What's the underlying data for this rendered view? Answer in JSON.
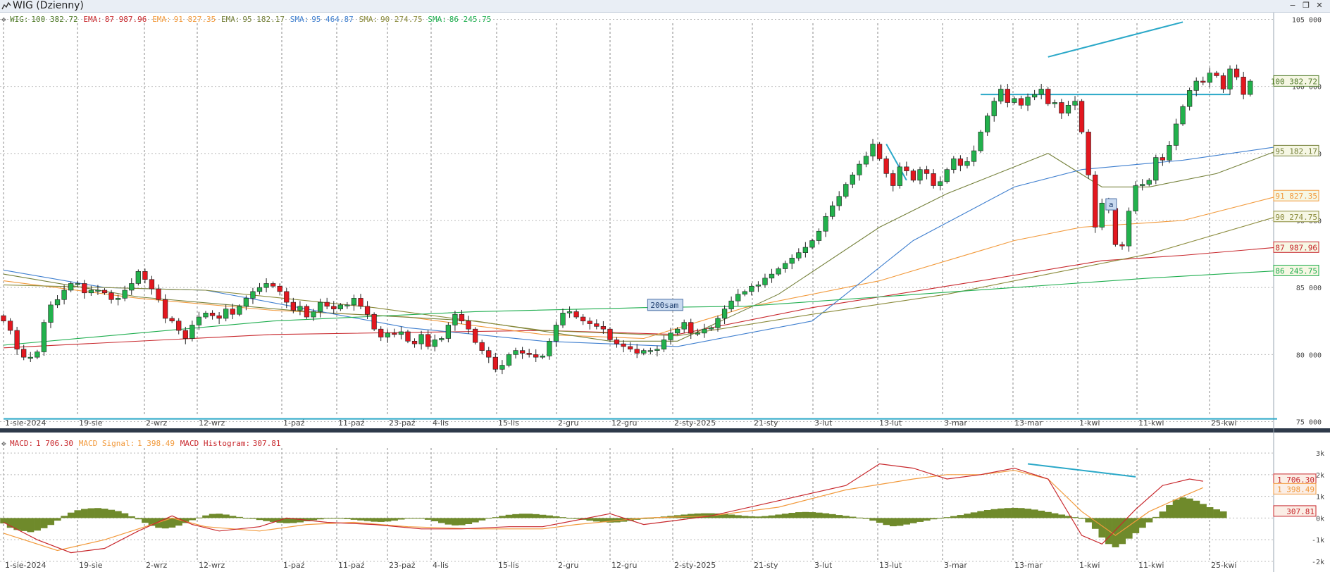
{
  "window": {
    "title": "WIG (Dzienny)",
    "buttons": [
      "−",
      "❐",
      "✕"
    ]
  },
  "chart_data": [
    {
      "type": "candlestick",
      "panel": "price",
      "legend_position": "top-left",
      "grid": true,
      "x_tick_labels": [
        "1-sie-2024",
        "19-sie",
        "2-wrz",
        "12-wrz",
        "1-paź",
        "11-paź",
        "23-paź",
        "4-lis",
        "15-lis",
        "2-gru",
        "12-gru",
        "2-sty-2025",
        "21-sty",
        "3-lut",
        "13-lut",
        "3-mar",
        "13-mar",
        "1-kwi",
        "11-kwi",
        "25-kwi"
      ],
      "y_ticks": [
        75000,
        80000,
        85000,
        90000,
        95000,
        100000,
        105000
      ],
      "y_tick_labels": [
        "75 000",
        "80 000",
        "85 000",
        "90 000",
        "95 000",
        "100 000",
        "105 000"
      ],
      "ylim": [
        74500,
        105500
      ],
      "legend": [
        {
          "label": "WIG:",
          "value": "100 382.72",
          "color": "#4f7a28"
        },
        {
          "label": "EMA:",
          "value": "87 987.96",
          "color": "#c8282d"
        },
        {
          "label": "EMA:",
          "value": "91 827.35",
          "color": "#f29a3c"
        },
        {
          "label": "EMA:",
          "value": "95 182.17",
          "color": "#75813b"
        },
        {
          "label": "SMA:",
          "value": "95 464.87",
          "color": "#3f7fcf"
        },
        {
          "label": "SMA:",
          "value": "90 274.75",
          "color": "#8a8a3a"
        },
        {
          "label": "SMA:",
          "value": "86 245.75",
          "color": "#1fae4f"
        }
      ],
      "last_values": [
        {
          "value": "100 382.72",
          "y": 100382.72,
          "color": "#4f7a28"
        },
        {
          "value": "95 182.17",
          "y": 95182.17,
          "color": "#75813b"
        },
        {
          "value": "91 827.35",
          "y": 91827.35,
          "color": "#f29a3c"
        },
        {
          "value": "90 274.75",
          "y": 90274.75,
          "color": "#8a8a3a"
        },
        {
          "value": "87 987.96",
          "y": 87987.96,
          "color": "#c8282d"
        },
        {
          "value": "86 245.75",
          "y": 86245.75,
          "color": "#1fae4f"
        }
      ],
      "annotations": [
        {
          "text": "200sam",
          "x": 96,
          "y": 83600
        },
        {
          "text": "a",
          "x": 164,
          "y": 91100
        }
      ],
      "trendlines": [
        {
          "x1": 0,
          "y1": 75200,
          "x2": 189,
          "y2": 75200,
          "color": "#2aa8c8"
        },
        {
          "x1": 145,
          "y1": 99400,
          "x2": 182,
          "y2": 99400,
          "color": "#2aa8c8"
        },
        {
          "x1": 155,
          "y1": 102200,
          "x2": 175,
          "y2": 104800,
          "color": "#2aa8c8"
        },
        {
          "x1": 131,
          "y1": 95700,
          "x2": 134,
          "y2": 93000,
          "color": "#2aa8c8"
        }
      ],
      "series": [
        {
          "name": "EMA",
          "color": "#c8282d",
          "points": [
            [
              0,
              80500
            ],
            [
              40,
              81500
            ],
            [
              80,
              81800
            ],
            [
              100,
              81500
            ],
            [
              120,
              83500
            ],
            [
              145,
              85500
            ],
            [
              163,
              87000
            ],
            [
              175,
              87400
            ],
            [
              189,
              88000
            ]
          ]
        },
        {
          "name": "EMA",
          "color": "#f29a3c",
          "points": [
            [
              0,
              85500
            ],
            [
              20,
              84200
            ],
            [
              40,
              83300
            ],
            [
              60,
              82800
            ],
            [
              80,
              81500
            ],
            [
              95,
              81200
            ],
            [
              110,
              83500
            ],
            [
              130,
              85500
            ],
            [
              150,
              88500
            ],
            [
              160,
              89500
            ],
            [
              175,
              90000
            ],
            [
              189,
              91800
            ]
          ]
        },
        {
          "name": "EMA",
          "color": "#75813b",
          "points": [
            [
              0,
              86000
            ],
            [
              20,
              84300
            ],
            [
              45,
              83200
            ],
            [
              70,
              82500
            ],
            [
              90,
              81000
            ],
            [
              100,
              81000
            ],
            [
              115,
              84500
            ],
            [
              130,
              89500
            ],
            [
              140,
              92000
            ],
            [
              155,
              95000
            ],
            [
              163,
              92500
            ],
            [
              170,
              92500
            ],
            [
              180,
              93500
            ],
            [
              189,
              95200
            ]
          ]
        },
        {
          "name": "SMA",
          "color": "#3f7fcf",
          "points": [
            [
              0,
              86300
            ],
            [
              15,
              85000
            ],
            [
              30,
              84800
            ],
            [
              60,
              82000
            ],
            [
              80,
              81000
            ],
            [
              100,
              80600
            ],
            [
              120,
              82500
            ],
            [
              135,
              88500
            ],
            [
              150,
              92500
            ],
            [
              160,
              93800
            ],
            [
              175,
              94500
            ],
            [
              189,
              95500
            ]
          ]
        },
        {
          "name": "SMA",
          "color": "#8a8a3a",
          "points": [
            [
              0,
              85200
            ],
            [
              30,
              84800
            ],
            [
              55,
              83500
            ],
            [
              80,
              81800
            ],
            [
              100,
              81400
            ],
            [
              120,
              83000
            ],
            [
              140,
              84500
            ],
            [
              155,
              86000
            ],
            [
              170,
              87500
            ],
            [
              189,
              90300
            ]
          ]
        },
        {
          "name": "SMA",
          "color": "#1fae4f",
          "points": [
            [
              0,
              80700
            ],
            [
              40,
              82500
            ],
            [
              70,
              83200
            ],
            [
              95,
              83500
            ],
            [
              110,
              83600
            ],
            [
              130,
              84300
            ],
            [
              150,
              85000
            ],
            [
              170,
              85700
            ],
            [
              189,
              86250
            ]
          ]
        }
      ],
      "close": [
        82500,
        81800,
        80400,
        79800,
        79800,
        80200,
        82400,
        83700,
        84100,
        84800,
        85300,
        85300,
        84600,
        84800,
        84800,
        84600,
        84100,
        84200,
        84800,
        85300,
        86200,
        85600,
        84900,
        84100,
        82700,
        82500,
        81800,
        81200,
        82200,
        82800,
        83100,
        82900,
        82700,
        83400,
        83000,
        83600,
        84200,
        84700,
        85000,
        85300,
        85100,
        84700,
        83900,
        83300,
        83600,
        82800,
        83200,
        83900,
        83600,
        83400,
        83700,
        83700,
        84200,
        83600,
        83000,
        81900,
        81300,
        81600,
        81500,
        81700,
        81000,
        80800,
        81500,
        80600,
        81100,
        81200,
        82200,
        83000,
        82500,
        81900,
        80900,
        80300,
        79800,
        78900,
        79200,
        80000,
        80300,
        80100,
        80000,
        79800,
        79900,
        81000,
        82200,
        83100,
        83200,
        82800,
        82500,
        82300,
        82100,
        81900,
        81100,
        80800,
        80600,
        80400,
        80100,
        80300,
        80300,
        80400,
        81100,
        81600,
        81900,
        82400,
        81600,
        81600,
        81900,
        82000,
        82700,
        83400,
        84000,
        84500,
        84700,
        85100,
        85200,
        85700,
        86000,
        86400,
        86800,
        87200,
        87600,
        88000,
        88500,
        89200,
        90300,
        91100,
        91800,
        92700,
        93400,
        94200,
        94800,
        95700,
        94600,
        93500,
        92600,
        94000,
        93700,
        93000,
        93800,
        93500,
        92600,
        92900,
        93800,
        94600,
        94100,
        94400,
        95200,
        96600,
        97800,
        98900,
        99800,
        98800,
        99100,
        98600,
        99200,
        99400,
        99800,
        98700,
        98800,
        98000,
        98600,
        98900,
        96600,
        93400,
        89500,
        91300,
        90900,
        88200,
        88100,
        90700,
        92600,
        92700,
        93000,
        94700,
        94500,
        95600,
        97200,
        98500,
        99700,
        100400,
        100300,
        101000,
        100800,
        99800,
        101300,
        100700,
        99400,
        100400
      ],
      "x_max": 189
    },
    {
      "type": "bar+line",
      "panel": "macd",
      "x_tick_labels": [
        "1-sie-2024",
        "19-sie",
        "2-wrz",
        "12-wrz",
        "1-paź",
        "11-paź",
        "23-paź",
        "4-lis",
        "15-lis",
        "2-gru",
        "12-gru",
        "2-sty-2025",
        "21-sty",
        "3-lut",
        "13-lut",
        "3-mar",
        "13-mar",
        "1-kwi",
        "11-kwi",
        "25-kwi"
      ],
      "y_ticks": [
        -2000,
        -1000,
        0,
        1000,
        2000,
        3000
      ],
      "y_tick_labels": [
        "-2k",
        "-1k",
        "0k",
        "1k",
        "2k",
        "3k"
      ],
      "ylim": [
        -2100,
        3100
      ],
      "legend": [
        {
          "label": "MACD:",
          "value": "1 706.30",
          "color": "#c8282d"
        },
        {
          "label": "MACD Signal:",
          "value": "1 398.49",
          "color": "#f29a3c"
        },
        {
          "label": "MACD Histogram:",
          "value": "307.81",
          "color": "#c8282d"
        }
      ],
      "last_values": [
        {
          "value": "1 706.30",
          "y": 1706.3,
          "color": "#c8282d"
        },
        {
          "value": "1 398.49",
          "y": 1398.49,
          "color": "#f29a3c"
        },
        {
          "value": "307.81",
          "y": 307.81,
          "color": "#c8282d"
        }
      ],
      "trendlines": [
        {
          "x1": 152,
          "y1": 2500,
          "x2": 168,
          "y2": 1900,
          "color": "#2aa8c8"
        }
      ],
      "macd": [
        [
          0,
          -200
        ],
        [
          5,
          -1000
        ],
        [
          10,
          -1600
        ],
        [
          15,
          -1400
        ],
        [
          20,
          -600
        ],
        [
          25,
          100
        ],
        [
          28,
          -300
        ],
        [
          32,
          -600
        ],
        [
          38,
          -400
        ],
        [
          42,
          0
        ],
        [
          48,
          -200
        ],
        [
          55,
          -300
        ],
        [
          62,
          -500
        ],
        [
          68,
          -500
        ],
        [
          75,
          -400
        ],
        [
          80,
          -400
        ],
        [
          85,
          -100
        ],
        [
          90,
          200
        ],
        [
          95,
          -300
        ],
        [
          100,
          -100
        ],
        [
          105,
          100
        ],
        [
          115,
          800
        ],
        [
          125,
          1500
        ],
        [
          130,
          2500
        ],
        [
          135,
          2300
        ],
        [
          140,
          1800
        ],
        [
          145,
          2000
        ],
        [
          150,
          2300
        ],
        [
          155,
          1800
        ],
        [
          160,
          -800
        ],
        [
          163,
          -1200
        ],
        [
          168,
          400
        ],
        [
          172,
          1500
        ],
        [
          176,
          1800
        ],
        [
          178,
          1700
        ]
      ],
      "signal": [
        [
          0,
          -700
        ],
        [
          8,
          -1500
        ],
        [
          15,
          -1000
        ],
        [
          20,
          -500
        ],
        [
          25,
          0
        ],
        [
          30,
          -400
        ],
        [
          38,
          -600
        ],
        [
          45,
          -300
        ],
        [
          52,
          -200
        ],
        [
          60,
          -400
        ],
        [
          70,
          -500
        ],
        [
          80,
          -500
        ],
        [
          85,
          -300
        ],
        [
          95,
          0
        ],
        [
          105,
          100
        ],
        [
          115,
          500
        ],
        [
          125,
          1300
        ],
        [
          135,
          1800
        ],
        [
          140,
          2000
        ],
        [
          145,
          2000
        ],
        [
          150,
          2200
        ],
        [
          155,
          1800
        ],
        [
          160,
          300
        ],
        [
          165,
          -800
        ],
        [
          170,
          300
        ],
        [
          175,
          1000
        ],
        [
          178,
          1400
        ]
      ],
      "histogram": [
        -250,
        -450,
        -550,
        -600,
        -650,
        -580,
        -470,
        -320,
        -120,
        100,
        250,
        360,
        420,
        450,
        460,
        430,
        380,
        320,
        220,
        80,
        -60,
        -220,
        -360,
        -450,
        -480,
        -440,
        -350,
        -230,
        -100,
        20,
        120,
        190,
        200,
        160,
        100,
        50,
        0,
        -40,
        -90,
        -140,
        -180,
        -220,
        -240,
        -230,
        -200,
        -150,
        -100,
        -60,
        -30,
        -20,
        -30,
        -50,
        -80,
        -110,
        -140,
        -170,
        -180,
        -160,
        -120,
        -70,
        -20,
        0,
        -20,
        -80,
        -150,
        -230,
        -300,
        -340,
        -330,
        -280,
        -200,
        -110,
        -30,
        40,
        100,
        150,
        180,
        200,
        200,
        180,
        150,
        120,
        80,
        40,
        0,
        -40,
        -80,
        -120,
        -160,
        -190,
        -210,
        -200,
        -170,
        -130,
        -80,
        -40,
        0,
        40,
        70,
        100,
        130,
        160,
        190,
        210,
        220,
        220,
        210,
        190,
        160,
        130,
        100,
        80,
        70,
        90,
        120,
        160,
        200,
        240,
        270,
        280,
        270,
        250,
        220,
        180,
        140,
        100,
        60,
        20,
        -40,
        -120,
        -220,
        -320,
        -380,
        -360,
        -300,
        -240,
        -180,
        -120,
        -60,
        -10,
        40,
        90,
        140,
        200,
        260,
        320,
        370,
        410,
        440,
        460,
        470,
        460,
        430,
        390,
        340,
        280,
        220,
        160,
        100,
        40,
        -40,
        -200,
        -500,
        -900,
        -1200,
        -1350,
        -1200,
        -950,
        -700,
        -450,
        -200,
        50,
        300,
        600,
        850,
        950,
        900,
        800,
        650,
        500,
        400,
        307
      ]
    }
  ]
}
